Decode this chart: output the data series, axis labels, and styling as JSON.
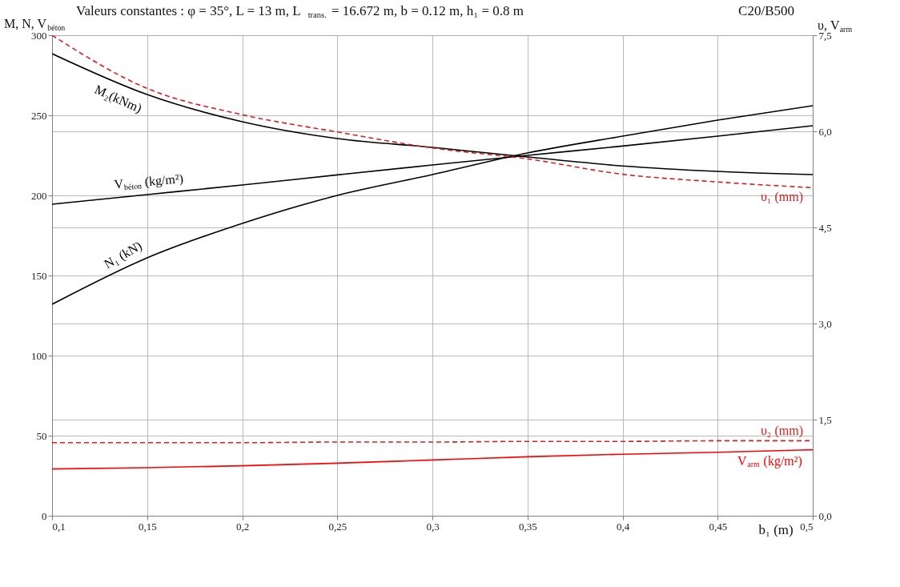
{
  "chart_data": {
    "type": "line",
    "title": "Valeurs constantes : φ = 35°,  L = 13 m, L$_{trans.}$ = 16.672 m, b = 0.12 m, h₁ = 0.8 m",
    "annotations": [
      "C20/B500"
    ],
    "xlabel": "b₁ (m)",
    "ylabel": "M, N, V$_{béton}$",
    "y2label": "υ, V$_{arm}$",
    "x": [
      0.1,
      0.15,
      0.2,
      0.25,
      0.3,
      0.35,
      0.4,
      0.45,
      0.5
    ],
    "series": [
      {
        "name": "M₂(kNm)",
        "color": "#000000",
        "values": [
          288.5,
          263,
          246,
          235.5,
          230,
          224,
          218.4,
          215,
          213
        ]
      },
      {
        "name": "N₁ (kN)",
        "color": "#000000",
        "values": [
          132,
          161,
          182.5,
          200,
          213,
          226.5,
          237,
          247,
          256
        ]
      },
      {
        "name": "V$_{béton}$ (kg/m²)",
        "color": "#000000",
        "values": [
          194.5,
          200.5,
          206.5,
          212.8,
          219,
          225,
          230.8,
          237,
          243.5
        ]
      },
      {
        "name": "υ₁ (mm)",
        "color": "#d42020",
        "axis": "y2",
        "line_style": "dashed",
        "values": [
          7.5,
          6.67,
          6.26,
          5.99,
          5.74,
          5.57,
          5.33,
          5.21,
          5.12
        ]
      },
      {
        "name": "υ₂ (mm)",
        "color": "#d42020",
        "axis": "y2",
        "line_style": "dashed",
        "values": [
          1.14,
          1.14,
          1.14,
          1.15,
          1.15,
          1.16,
          1.16,
          1.17,
          1.17
        ]
      },
      {
        "name": "V$_{arm}$ (kg/m²)",
        "color": "#ff0000",
        "axis": "y2",
        "values": [
          0.73,
          0.75,
          0.78,
          0.82,
          0.87,
          0.92,
          0.96,
          0.99,
          1.03
        ]
      }
    ],
    "xlim": [
      0.1,
      0.5
    ],
    "xticks": [
      {
        "value": 0.1,
        "label": "0,1"
      },
      {
        "value": 0.15,
        "label": "0,15"
      },
      {
        "value": 0.2,
        "label": "0,2"
      },
      {
        "value": 0.25,
        "label": "0,25"
      },
      {
        "value": 0.3,
        "label": "0,3"
      },
      {
        "value": 0.35,
        "label": "0,35"
      },
      {
        "value": 0.4,
        "label": "0,4"
      },
      {
        "value": 0.45,
        "label": "0,45"
      },
      {
        "value": 0.5,
        "label": "0,5"
      }
    ],
    "ylim": [
      0,
      300
    ],
    "yticks": [
      0,
      50,
      100,
      150,
      200,
      250,
      300
    ],
    "y2lim": [
      0,
      7.5
    ],
    "y2ticks": [
      {
        "value": 0,
        "label": "0,0"
      },
      {
        "value": 1.5,
        "label": "1,5"
      },
      {
        "value": 3,
        "label": "3,0"
      },
      {
        "value": 4.5,
        "label": "4,5"
      },
      {
        "value": 6,
        "label": "6,0"
      },
      {
        "value": 7.5,
        "label": "7,5"
      }
    ],
    "grid": true,
    "legend": false,
    "line_style": "solid"
  }
}
